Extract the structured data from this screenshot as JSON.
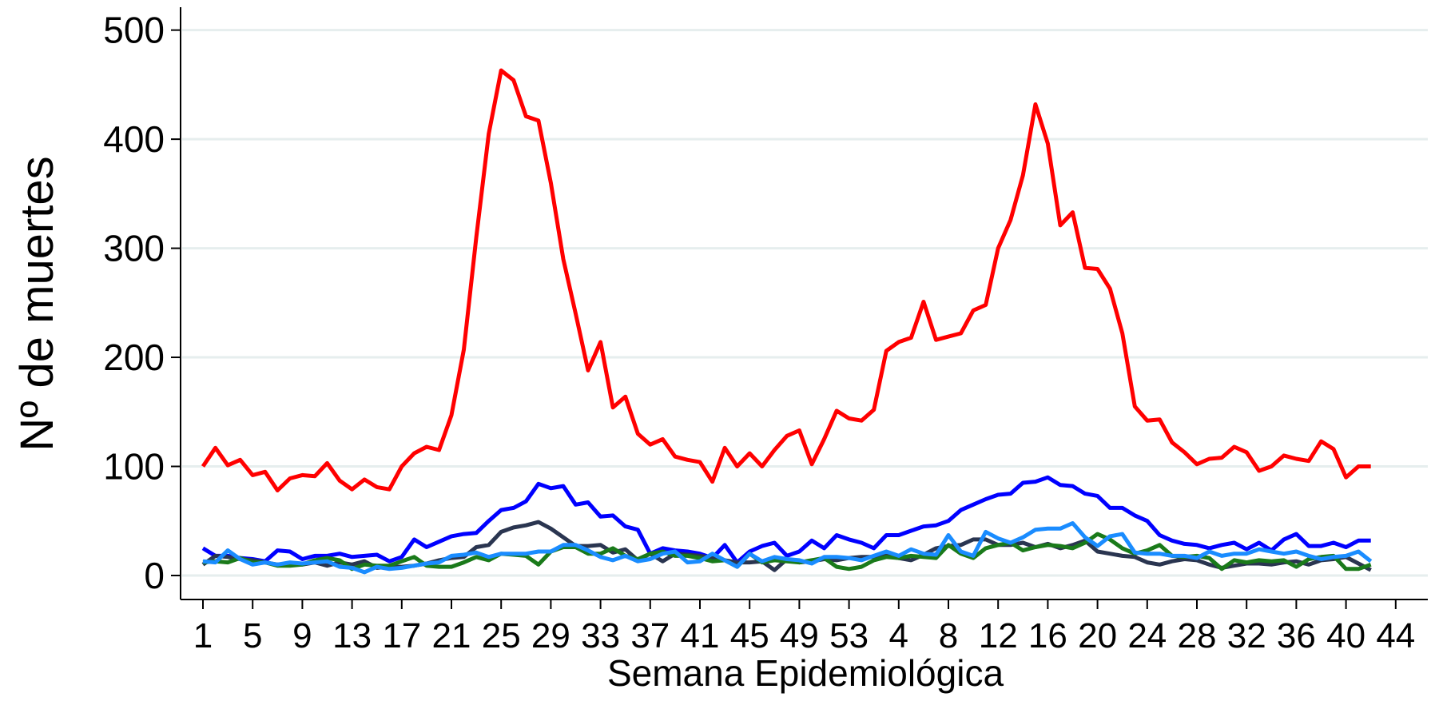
{
  "chart_data": {
    "type": "line",
    "ylabel": "Nº de muertes",
    "xlabel": "Semana Epidemiológica",
    "categories": [
      "1",
      null,
      null,
      null,
      "5",
      null,
      null,
      null,
      "9",
      null,
      null,
      null,
      "13",
      null,
      null,
      null,
      "17",
      null,
      null,
      null,
      "21",
      null,
      null,
      null,
      "25",
      null,
      null,
      null,
      "29",
      null,
      null,
      null,
      "33",
      null,
      null,
      null,
      "37",
      null,
      null,
      null,
      "41",
      null,
      null,
      null,
      "45",
      null,
      null,
      null,
      "49",
      null,
      null,
      null,
      "53",
      null,
      null,
      null,
      "4",
      null,
      null,
      null,
      "8",
      null,
      null,
      null,
      "12",
      null,
      null,
      null,
      "16",
      null,
      null,
      null,
      "20",
      null,
      null,
      null,
      "24",
      null,
      null,
      null,
      "28",
      null,
      null,
      null,
      "32",
      null,
      null,
      null,
      "36",
      null,
      null,
      null,
      "40",
      null,
      null,
      null,
      "44"
    ],
    "series": [
      {
        "color": "#ff0000",
        "values": [
          100,
          117,
          101,
          106,
          92,
          95,
          78,
          89,
          92,
          91,
          103,
          87,
          79,
          88,
          81,
          79,
          100,
          112,
          118,
          115,
          147,
          207,
          310,
          405,
          463,
          454,
          421,
          417,
          360,
          290,
          240,
          188,
          214,
          154,
          164,
          130,
          120,
          125,
          109,
          106,
          104,
          86,
          117,
          100,
          112,
          100,
          115,
          128,
          133,
          102,
          125,
          151,
          144,
          142,
          152,
          206,
          214,
          218,
          251,
          216,
          219,
          222,
          243,
          248,
          300,
          326,
          367,
          432,
          396,
          321,
          333,
          282,
          281,
          263,
          222,
          155,
          142,
          143,
          122,
          113,
          102,
          107,
          108,
          118,
          113,
          96,
          100,
          110,
          107,
          105,
          123,
          116,
          90,
          100,
          100,
          null,
          null
        ]
      },
      {
        "color": "#0000ff",
        "values": [
          25,
          18,
          18,
          16,
          15,
          13,
          23,
          22,
          15,
          18,
          18,
          20,
          17,
          18,
          19,
          13,
          17,
          33,
          26,
          31,
          36,
          38,
          39,
          50,
          60,
          62,
          68,
          84,
          80,
          82,
          65,
          67,
          54,
          55,
          45,
          42,
          20,
          25,
          23,
          22,
          20,
          16,
          28,
          12,
          22,
          27,
          30,
          18,
          22,
          32,
          25,
          37,
          33,
          30,
          25,
          37,
          37,
          41,
          45,
          46,
          50,
          60,
          65,
          70,
          74,
          75,
          85,
          86,
          90,
          83,
          82,
          75,
          73,
          62,
          62,
          55,
          50,
          37,
          32,
          29,
          28,
          25,
          28,
          30,
          24,
          30,
          23,
          33,
          38,
          27,
          27,
          30,
          26,
          32,
          32,
          null,
          null
        ]
      },
      {
        "color": "#2a3550",
        "values": [
          10,
          18,
          17,
          15,
          14,
          12,
          10,
          10,
          10,
          12,
          9,
          12,
          10,
          13,
          7,
          8,
          8,
          9,
          11,
          14,
          16,
          17,
          26,
          28,
          40,
          44,
          46,
          49,
          43,
          35,
          27,
          27,
          28,
          21,
          24,
          14,
          20,
          13,
          20,
          19,
          18,
          16,
          14,
          12,
          12,
          13,
          5,
          15,
          12,
          13,
          15,
          14,
          16,
          17,
          17,
          18,
          16,
          14,
          19,
          25,
          27,
          28,
          33,
          33,
          28,
          28,
          30,
          26,
          29,
          25,
          28,
          32,
          22,
          20,
          18,
          17,
          12,
          10,
          13,
          15,
          14,
          10,
          7,
          9,
          11,
          11,
          10,
          12,
          13,
          10,
          14,
          15,
          17,
          11,
          5,
          null,
          null
        ]
      },
      {
        "color": "#1a7a1a",
        "values": [
          12,
          13,
          12,
          16,
          12,
          12,
          9,
          9,
          10,
          14,
          16,
          14,
          6,
          10,
          9,
          9,
          13,
          17,
          9,
          8,
          8,
          12,
          17,
          14,
          20,
          19,
          18,
          10,
          22,
          26,
          26,
          20,
          20,
          25,
          18,
          15,
          20,
          22,
          18,
          18,
          16,
          13,
          14,
          8,
          20,
          12,
          14,
          13,
          12,
          14,
          16,
          8,
          6,
          8,
          14,
          17,
          16,
          18,
          17,
          16,
          28,
          20,
          16,
          25,
          28,
          30,
          23,
          26,
          28,
          27,
          25,
          30,
          38,
          33,
          25,
          20,
          23,
          28,
          18,
          17,
          18,
          16,
          6,
          14,
          12,
          14,
          13,
          14,
          8,
          15,
          17,
          18,
          6,
          6,
          10,
          null,
          null
        ]
      },
      {
        "color": "#1a8cff",
        "values": [
          13,
          12,
          23,
          15,
          10,
          12,
          10,
          12,
          11,
          12,
          13,
          8,
          7,
          3,
          8,
          6,
          7,
          9,
          11,
          12,
          18,
          19,
          21,
          17,
          20,
          20,
          20,
          22,
          22,
          28,
          28,
          23,
          17,
          14,
          18,
          13,
          15,
          20,
          22,
          12,
          13,
          20,
          14,
          8,
          20,
          13,
          17,
          15,
          14,
          11,
          17,
          17,
          16,
          14,
          18,
          22,
          18,
          24,
          20,
          19,
          37,
          22,
          18,
          40,
          34,
          30,
          35,
          42,
          43,
          43,
          48,
          35,
          27,
          36,
          38,
          21,
          20,
          20,
          18,
          18,
          16,
          22,
          18,
          20,
          20,
          24,
          22,
          20,
          22,
          18,
          15,
          17,
          18,
          22,
          13,
          null,
          null
        ]
      }
    ],
    "ylim": [
      -22,
      521
    ],
    "yticks": [
      0,
      100,
      200,
      300,
      400,
      500
    ],
    "grid": true
  }
}
